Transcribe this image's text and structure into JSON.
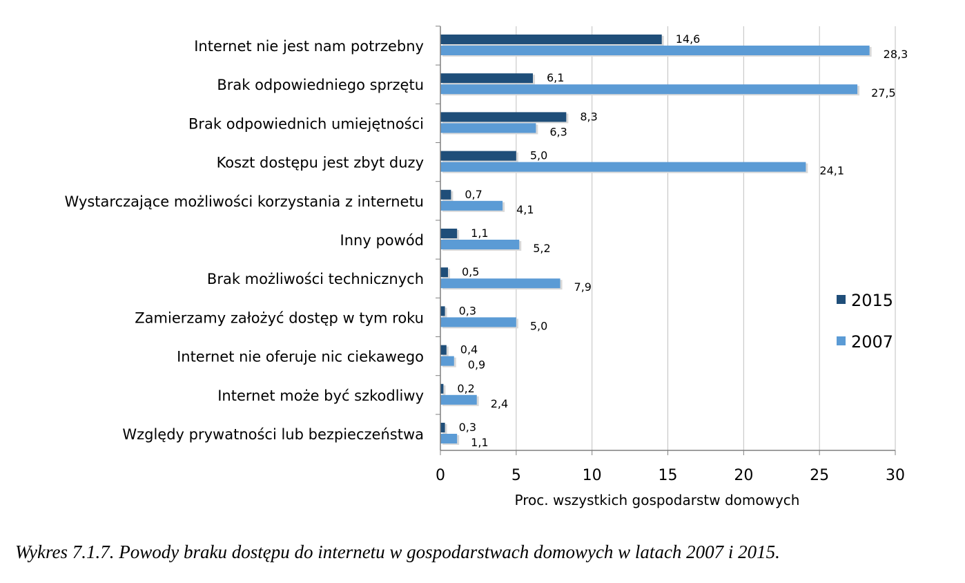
{
  "caption": "Wykres 7.1.7. Powody braku dostępu do internetu w gospodarstwach domowych w latach 2007 i 2015.",
  "colors": {
    "series_2015": "#1f4e79",
    "series_2007": "#5b9bd5",
    "grid": "#bfbfbf",
    "axis": "#7f7f7f"
  },
  "chart_data": {
    "type": "bar",
    "orientation": "horizontal",
    "title": "",
    "xlabel": "Proc. wszystkich gospodarstw domowych",
    "ylabel": "",
    "xlim": [
      0,
      30
    ],
    "xticks": [
      0,
      5,
      10,
      15,
      20,
      25,
      30
    ],
    "grid": "vertical",
    "legend_position": "right",
    "categories": [
      "Internet nie jest nam potrzebny",
      "Brak odpowiedniego sprzętu",
      "Brak odpowiednich umiejętności",
      "Koszt dostępu jest zbyt duzy",
      "Wystarczające możliwości korzystania z internetu",
      "Inny powód",
      "Brak możliwości technicznych",
      "Zamierzamy założyć dostęp w tym roku",
      "Internet nie oferuje nic ciekawego",
      "Internet może być szkodliwy",
      "Względy prywatności lub bezpieczeństwa"
    ],
    "series": [
      {
        "name": "2015",
        "values": [
          14.6,
          6.1,
          8.3,
          5.0,
          0.7,
          1.1,
          0.5,
          0.3,
          0.4,
          0.2,
          0.3
        ],
        "labels": [
          "14,6",
          "6,1",
          "8,3",
          "5,0",
          "0,7",
          "1,1",
          "0,5",
          "0,3",
          "0,4",
          "0,2",
          "0,3"
        ]
      },
      {
        "name": "2007",
        "values": [
          28.3,
          27.5,
          6.3,
          24.1,
          4.1,
          5.2,
          7.9,
          5.0,
          0.9,
          2.4,
          1.1
        ],
        "labels": [
          "28,3",
          "27,5",
          "6,3",
          "24,1",
          "4,1",
          "5,2",
          "7,9",
          "5,0",
          "0,9",
          "2,4",
          "1,1"
        ]
      }
    ]
  }
}
